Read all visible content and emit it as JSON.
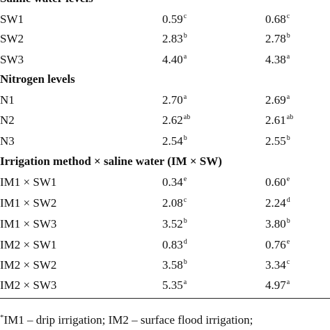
{
  "sections": [
    {
      "heading": "Saline water levels",
      "rows": [
        {
          "label": "SW1",
          "v1": "0.59",
          "s1": "c",
          "v2": "0.68",
          "s2": "c"
        },
        {
          "label": "SW2",
          "v1": "2.83",
          "s1": "b",
          "v2": "2.78",
          "s2": "b"
        },
        {
          "label": "SW3",
          "v1": "4.40",
          "s1": "a",
          "v2": "4.38",
          "s2": "a"
        }
      ]
    },
    {
      "heading": "Nitrogen levels",
      "rows": [
        {
          "label": "N1",
          "v1": "2.70",
          "s1": "a",
          "v2": "2.69",
          "s2": "a"
        },
        {
          "label": "N2",
          "v1": "2.62",
          "s1": "ab",
          "v2": "2.61",
          "s2": "ab"
        },
        {
          "label": "N3",
          "v1": "2.54",
          "s1": "b",
          "v2": "2.55",
          "s2": "b"
        }
      ]
    },
    {
      "heading": "Irrigation method × saline water (IM × SW)",
      "rows": [
        {
          "label": "IM1 × SW1",
          "v1": "0.34",
          "s1": "e",
          "v2": "0.60",
          "s2": "e"
        },
        {
          "label": "IM1 × SW2",
          "v1": "2.08",
          "s1": "c",
          "v2": "2.24",
          "s2": "d"
        },
        {
          "label": "IM1 × SW3",
          "v1": "3.52",
          "s1": "b",
          "v2": "3.80",
          "s2": "b"
        },
        {
          "label": "IM2 × SW1",
          "v1": "0.83",
          "s1": "d",
          "v2": "0.76",
          "s2": "e"
        },
        {
          "label": "IM2 × SW2",
          "v1": "3.58",
          "s1": "b",
          "v2": "3.34",
          "s2": "c"
        },
        {
          "label": "IM2 × SW3",
          "v1": "5.35",
          "s1": "a",
          "v2": "4.97",
          "s2": "a"
        }
      ]
    }
  ],
  "footnote": {
    "marker": "*",
    "text": "IM1 – drip irrigation; IM2 – surface flood irrigation;"
  }
}
